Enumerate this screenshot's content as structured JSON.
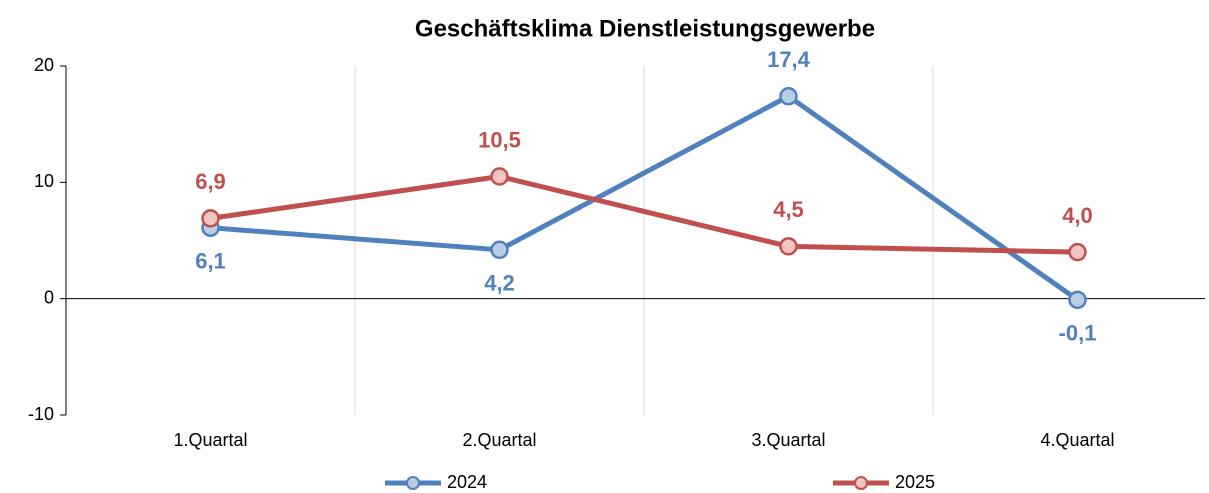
{
  "chart_data": {
    "type": "line",
    "title": "Geschäftsklima Dienstleistungsgewerbe",
    "categories": [
      "1.Quartal",
      "2.Quartal",
      "3.Quartal",
      "4.Quartal"
    ],
    "series": [
      {
        "name": "2024",
        "color": "#4f81bd",
        "values": [
          6.1,
          4.2,
          17.4,
          -0.1
        ],
        "value_labels": [
          "6,1",
          "4,2",
          "17,4",
          "-0,1"
        ]
      },
      {
        "name": "2025",
        "color": "#c0504d",
        "values": [
          6.9,
          10.5,
          4.5,
          4.0
        ],
        "value_labels": [
          "6,9",
          "10,5",
          "4,5",
          "4,0"
        ]
      }
    ],
    "ylim": [
      -10,
      20
    ],
    "yticks": [
      20,
      10,
      0,
      -10
    ],
    "legend": "bottom"
  }
}
